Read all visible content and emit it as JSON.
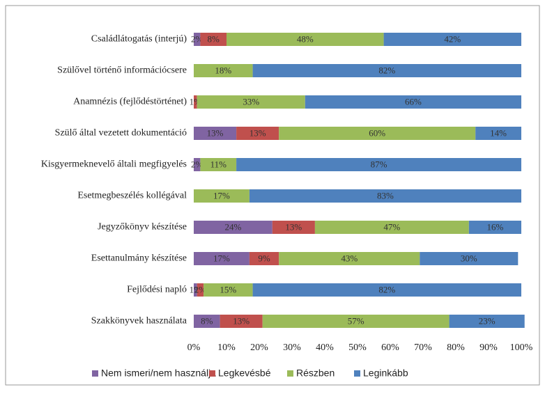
{
  "chart_data": {
    "type": "stacked-barh",
    "categories": [
      "Családlátogatás (interjú)",
      "Szülővel történő információcsere",
      "Anamnézis (fejlődéstörténet)",
      "Szülő által vezetett dokumentáció",
      "Kisgyermeknevelő általi megfigyelés",
      "Esetmegbeszélés kollégával",
      "Jegyzőkönyv készítése",
      "Esettanulmány készítése",
      "Fejlődési napló",
      "Szakkönyvek használata"
    ],
    "series": [
      {
        "name": "Nem ismeri/nem használja",
        "color": "#8064a2",
        "values": [
          2,
          null,
          null,
          13,
          2,
          null,
          24,
          17,
          1,
          8
        ],
        "value_labels": [
          "2%",
          null,
          null,
          "13%",
          "2%",
          null,
          "24%",
          "17%",
          "1%",
          "8%"
        ]
      },
      {
        "name": "Legkevésbé",
        "color": "#c0504d",
        "values": [
          8,
          null,
          1,
          13,
          null,
          null,
          13,
          9,
          2,
          13
        ],
        "value_labels": [
          "8%",
          null,
          "1%",
          "13%",
          null,
          null,
          "13%",
          "9%",
          "2%",
          "13%"
        ]
      },
      {
        "name": "Részben",
        "color": "#9bbb59",
        "values": [
          48,
          18,
          33,
          60,
          11,
          17,
          47,
          43,
          15,
          57
        ],
        "value_labels": [
          "48%",
          "18%",
          "33%",
          "60%",
          "11%",
          "17%",
          "47%",
          "43%",
          "15%",
          "57%"
        ]
      },
      {
        "name": "Leginkább",
        "color": "#4f81bd",
        "values": [
          42,
          82,
          66,
          14,
          87,
          83,
          16,
          30,
          82,
          23
        ],
        "value_labels": [
          "42%",
          "82%",
          "66%",
          "14%",
          "87%",
          "83%",
          "16%",
          "30%",
          "82%",
          "23%"
        ]
      }
    ],
    "xlim": [
      0,
      100
    ],
    "xticks": [
      {
        "value": 0,
        "label": "0%"
      },
      {
        "value": 10,
        "label": "10%"
      },
      {
        "value": 20,
        "label": "20%"
      },
      {
        "value": 30,
        "label": "30%"
      },
      {
        "value": 40,
        "label": "40%"
      },
      {
        "value": 50,
        "label": "50%"
      },
      {
        "value": 60,
        "label": "60%"
      },
      {
        "value": 70,
        "label": "70%"
      },
      {
        "value": 80,
        "label": "80%"
      },
      {
        "value": 90,
        "label": "90%"
      },
      {
        "value": 100,
        "label": "100%"
      }
    ],
    "grid": false,
    "legend": "bottom"
  }
}
